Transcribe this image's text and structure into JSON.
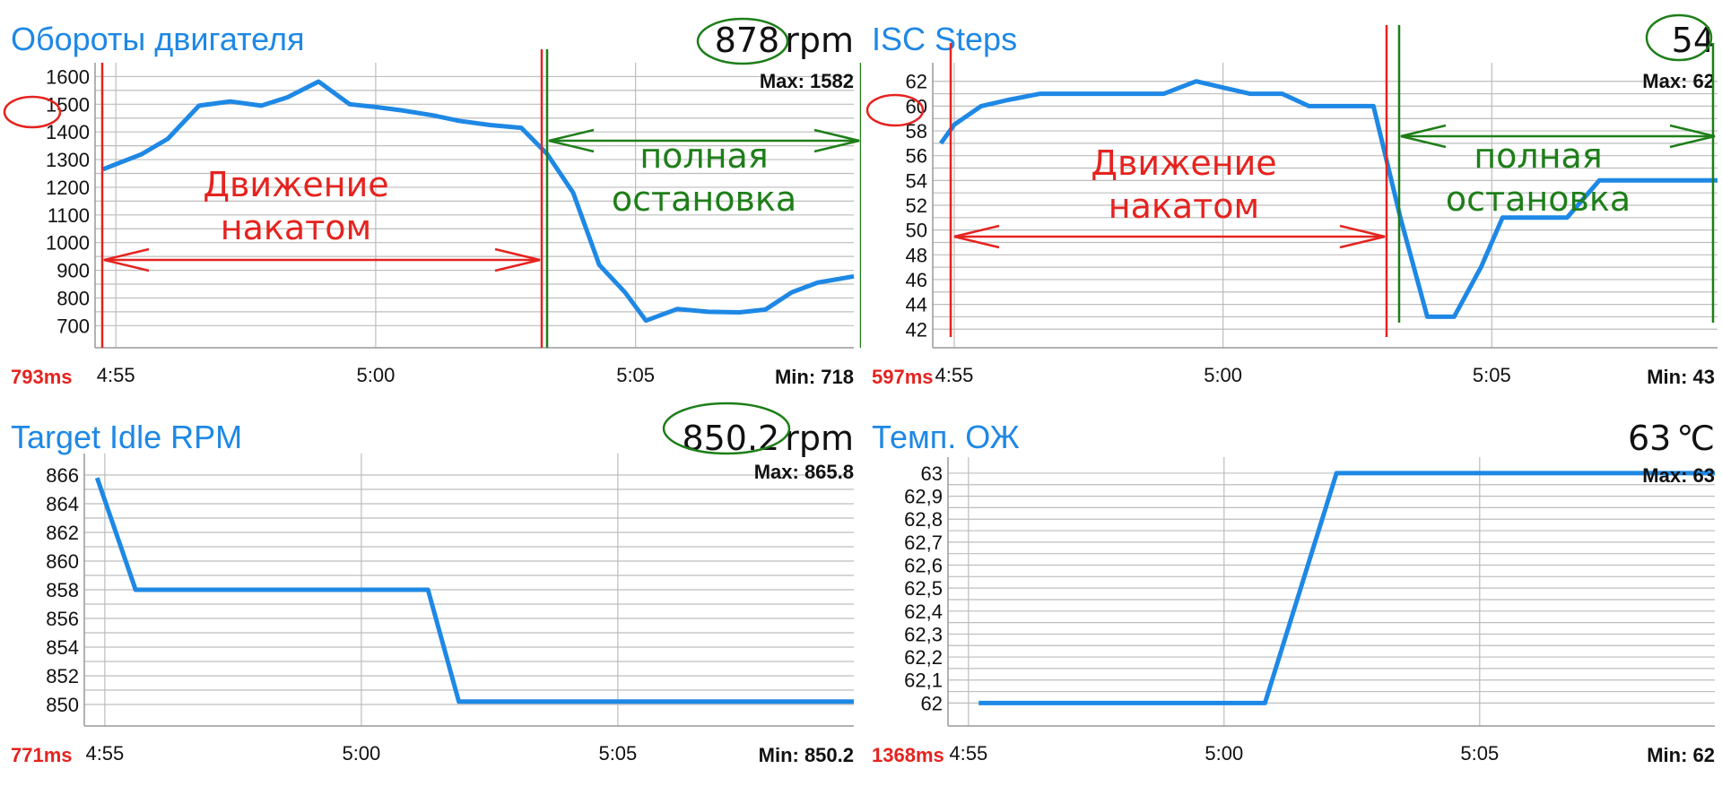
{
  "theme": {
    "line": "#1e88e5",
    "title": "#1e88e5",
    "red": "#e5231f",
    "green": "#1e7e19",
    "grid": "#bdbdbd"
  },
  "chart_data": [
    {
      "type": "line",
      "title": "Обороты двигателя",
      "current_value": "878",
      "unit": "rpm",
      "max_label": "Max: 1582",
      "min_label": "Min: 718",
      "latency": "793ms",
      "x_ticks": [
        "4:55",
        "5:00",
        "5:05"
      ],
      "x_tick_values": [
        295,
        300,
        305
      ],
      "xlim": [
        294.6,
        309.2
      ],
      "y_ticks": [
        "1600",
        "1500",
        "1400",
        "1300",
        "1200",
        "1100",
        "1000",
        "900",
        "800",
        "700"
      ],
      "ylim": [
        620,
        1650
      ],
      "y_minor": 50,
      "x": [
        294.75,
        295.5,
        296.0,
        296.6,
        297.2,
        297.8,
        298.3,
        298.9,
        299.5,
        300.0,
        300.5,
        301.1,
        301.6,
        302.2,
        302.8,
        303.3,
        303.8,
        304.3,
        304.8,
        305.2,
        305.8,
        306.4,
        307.0,
        307.5,
        308.0,
        308.5,
        309.2
      ],
      "y": [
        1265,
        1320,
        1375,
        1495,
        1510,
        1495,
        1525,
        1582,
        1500,
        1490,
        1478,
        1460,
        1440,
        1425,
        1415,
        1320,
        1180,
        920,
        820,
        718,
        760,
        750,
        748,
        758,
        820,
        855,
        878
      ],
      "annotations": {
        "left_text": "Движение накатом",
        "right_text": "полная остановка"
      }
    },
    {
      "type": "line",
      "title": "ISC Steps",
      "current_value": "54",
      "unit": "",
      "max_label": "Max: 62",
      "min_label": "Min: 43",
      "latency": "597ms",
      "x_ticks": [
        "4:55",
        "5:00",
        "5:05"
      ],
      "x_tick_values": [
        295,
        300,
        305
      ],
      "xlim": [
        294.6,
        309.2
      ],
      "y_ticks": [
        "62",
        "60",
        "58",
        "56",
        "54",
        "52",
        "50",
        "48",
        "46",
        "44",
        "42"
      ],
      "ylim": [
        40.5,
        63.5
      ],
      "y_minor": 1,
      "x": [
        294.75,
        295.0,
        295.5,
        296.0,
        296.6,
        297.2,
        297.8,
        298.3,
        298.9,
        299.5,
        300.0,
        300.5,
        301.1,
        301.6,
        302.2,
        302.8,
        303.3,
        303.8,
        304.3,
        304.8,
        305.2,
        305.8,
        306.4,
        307.0,
        307.5,
        308.0,
        308.5,
        309.2
      ],
      "y": [
        57,
        58.5,
        60,
        60.5,
        61,
        61,
        61,
        61,
        61,
        62,
        61.5,
        61,
        61,
        60,
        60,
        60,
        51,
        43,
        43,
        47,
        51,
        51,
        51,
        54,
        54,
        54,
        54,
        54
      ],
      "annotations": {
        "left_text": "Движение накатом",
        "right_text": "полная остановка"
      }
    },
    {
      "type": "line",
      "title": "Target Idle RPM",
      "current_value": "850.2",
      "unit": "rpm",
      "max_label": "Max: 865.8",
      "min_label": "Min: 850.2",
      "latency": "771ms",
      "x_ticks": [
        "4:55",
        "5:00",
        "5:05"
      ],
      "x_tick_values": [
        295,
        300,
        305
      ],
      "xlim": [
        294.6,
        309.6
      ],
      "y_ticks": [
        "866",
        "864",
        "862",
        "860",
        "858",
        "856",
        "854",
        "852",
        "850"
      ],
      "ylim": [
        848.5,
        867.5
      ],
      "y_minor": 1,
      "x": [
        294.85,
        295.6,
        296.0,
        299.0,
        301.3,
        301.9,
        309.6
      ],
      "y": [
        865.8,
        858,
        858,
        858,
        858,
        850.2,
        850.2
      ]
    },
    {
      "type": "line",
      "title": "Темп. ОЖ",
      "current_value": "63",
      "unit": "℃",
      "max_label": "Max: 63",
      "min_label": "Min: 62",
      "latency": "1368ms",
      "x_ticks": [
        "4:55",
        "5:00",
        "5:05"
      ],
      "x_tick_values": [
        295,
        300,
        305
      ],
      "xlim": [
        294.6,
        309.6
      ],
      "y_ticks": [
        "63",
        "62,9",
        "62,8",
        "62,7",
        "62,6",
        "62,5",
        "62,4",
        "62,3",
        "62,2",
        "62,1",
        "62"
      ],
      "ylim": [
        61.9,
        63.07
      ],
      "y_minor": 0.05,
      "x": [
        295.2,
        300.8,
        302.2,
        309.6
      ],
      "y": [
        62,
        62,
        63,
        63
      ]
    }
  ]
}
